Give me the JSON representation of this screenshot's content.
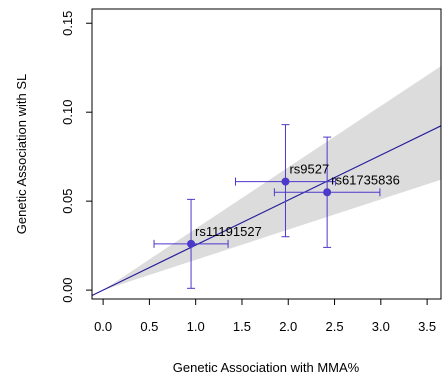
{
  "chart_data": {
    "type": "scatter",
    "title": "",
    "xlabel": "Genetic Association with MMA%",
    "ylabel": "Genetic Association with SL",
    "xlim": [
      -0.12,
      3.65
    ],
    "ylim": [
      -0.005,
      0.158
    ],
    "xticks": [
      "0.0",
      "0.5",
      "1.0",
      "1.5",
      "2.0",
      "2.5",
      "3.0",
      "3.5"
    ],
    "yticks": [
      "0.00",
      "0.05",
      "0.10",
      "0.15"
    ],
    "grid": false,
    "points": [
      {
        "label": "rs11191527",
        "x": 0.95,
        "y": 0.026,
        "x_low": 0.55,
        "x_high": 1.35,
        "y_low": 0.001,
        "y_high": 0.051
      },
      {
        "label": "rs9527",
        "x": 1.97,
        "y": 0.061,
        "x_low": 1.43,
        "x_high": 2.51,
        "y_low": 0.03,
        "y_high": 0.093
      },
      {
        "label": "rs61735836",
        "x": 2.42,
        "y": 0.055,
        "x_low": 1.85,
        "x_high": 2.99,
        "y_low": 0.024,
        "y_high": 0.086
      }
    ],
    "fit_line": {
      "slope": 0.0253,
      "intercept": 0.0
    },
    "confidence_band": {
      "slope_low": 0.017,
      "slope_high": 0.0345
    },
    "colors": {
      "points": "#4b39c9",
      "line": "#241d9a",
      "band": "#dcdcdc",
      "axis": "#000000"
    }
  }
}
